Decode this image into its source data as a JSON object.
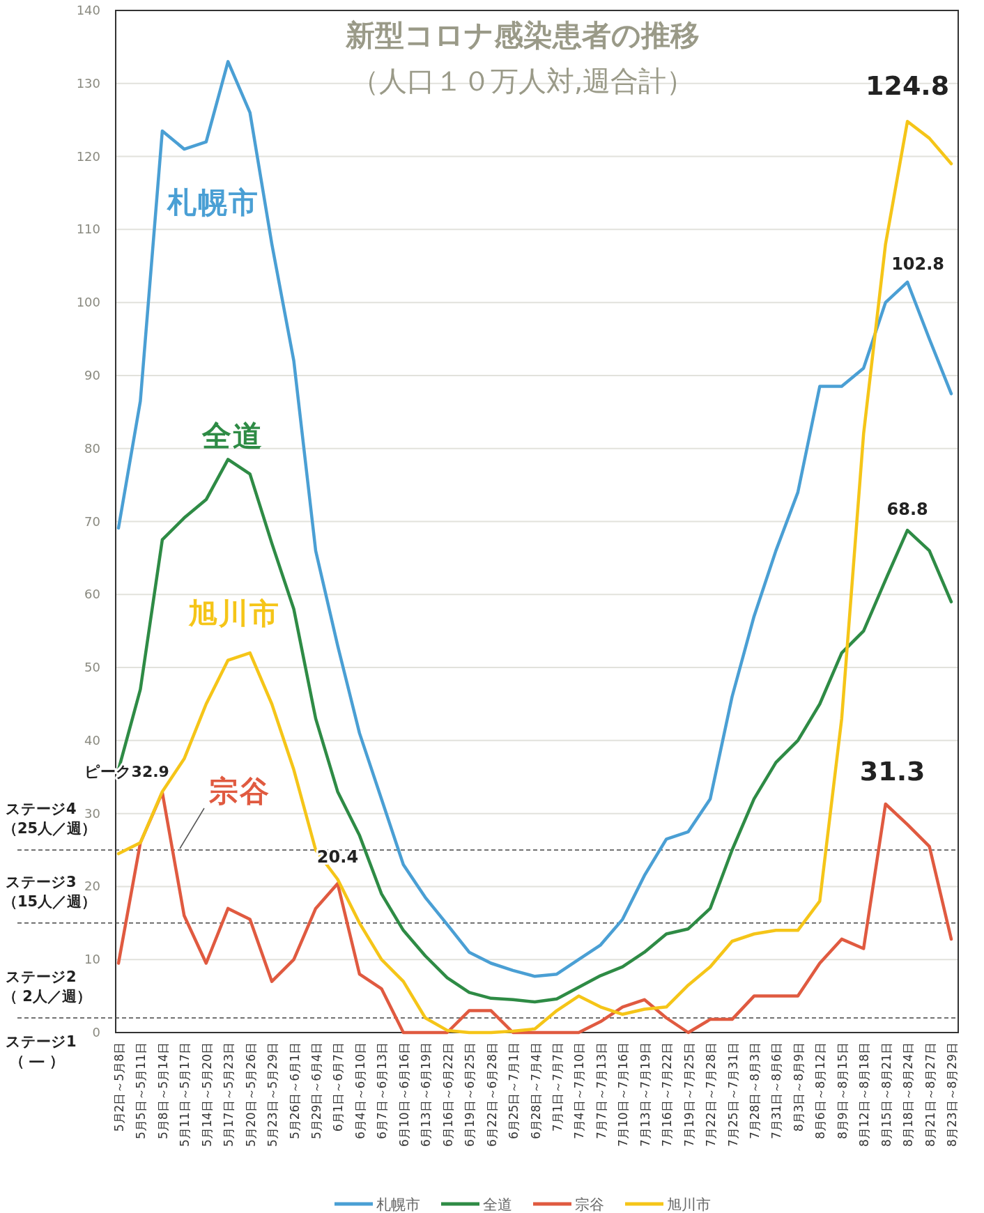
{
  "chart_data": {
    "type": "line",
    "title": "新型コロナ感染患者の推移",
    "subtitle": "（人口１０万人対,週合計）",
    "categories": [
      "5月2日～5月8日",
      "5月5日～5月11日",
      "5月8日～5月14日",
      "5月11日～5月17日",
      "5月14日～5月20日",
      "5月17日～5月23日",
      "5月20日～5月26日",
      "5月23日～5月29日",
      "5月26日～6月1日",
      "5月29日～6月4日",
      "6月1日～6月7日",
      "6月4日～6月10日",
      "6月7日～6月13日",
      "6月10日～6月16日",
      "6月13日～6月19日",
      "6月16日～6月22日",
      "6月19日～6月25日",
      "6月22日～6月28日",
      "6月25日～7月1日",
      "6月28日～7月4日",
      "7月1日～7月7日",
      "7月4日～7月10日",
      "7月7日～7月13日",
      "7月10日～7月16日",
      "7月13日～7月19日",
      "7月16日～7月22日",
      "7月19日～7月25日",
      "7月22日～7月28日",
      "7月25日～7月31日",
      "7月28日～8月3日",
      "7月31日～8月6日",
      "8月3日～8月9日",
      "8月6日～8月12日",
      "8月9日～8月15日",
      "8月12日～8月18日",
      "8月15日～8月21日",
      "8月18日～8月24日",
      "8月21日～8月27日",
      "8月23日～8月29日"
    ],
    "series": [
      {
        "name": "札幌市",
        "color": "#4a9fd4",
        "values": [
          69.1,
          86.5,
          123.5,
          121,
          122,
          133,
          126,
          108,
          92,
          66,
          53,
          41,
          32,
          23,
          18.5,
          14.8,
          11,
          9.5,
          8.5,
          7.7,
          8,
          10,
          12,
          15.5,
          21.5,
          26.5,
          27.5,
          32,
          46,
          57,
          66,
          74,
          88.5,
          88.5,
          91,
          100,
          102.8,
          95,
          87.5
        ]
      },
      {
        "name": "全道",
        "color": "#2e8b45",
        "values": [
          36,
          47,
          67.5,
          70.5,
          73,
          78.5,
          76.5,
          67,
          58,
          43,
          33,
          27,
          19,
          14,
          10.5,
          7.5,
          5.5,
          4.7,
          4.5,
          4.2,
          4.6,
          6.2,
          7.8,
          9,
          11,
          13.5,
          14.2,
          17,
          25,
          32,
          37,
          40,
          45,
          52,
          55,
          62,
          68.8,
          66,
          59
        ]
      },
      {
        "name": "宗谷",
        "color": "#e05a40",
        "values": [
          9.5,
          26,
          32.9,
          16,
          9.5,
          17,
          15.5,
          7,
          10,
          17,
          20.4,
          8,
          6,
          0,
          0,
          0,
          3,
          3,
          0,
          0,
          0,
          0,
          1.5,
          3.5,
          4.5,
          2,
          0,
          1.8,
          1.8,
          5,
          5,
          5,
          9.5,
          12.8,
          11.5,
          31.3,
          28.5,
          25.5,
          12.8
        ]
      },
      {
        "name": "旭川市",
        "color": "#f5c518",
        "values": [
          24.5,
          26,
          33,
          37.5,
          45,
          51,
          52,
          45,
          36,
          25,
          21,
          15,
          10,
          7,
          2,
          0.3,
          0,
          0,
          0.2,
          0.5,
          3,
          5,
          3.5,
          2.5,
          3.2,
          3.5,
          6.5,
          9,
          12.5,
          13.5,
          14,
          14,
          18,
          43,
          82,
          108,
          124.8,
          122.5,
          119
        ]
      }
    ],
    "ylim": [
      0,
      140
    ],
    "yticks": [
      0,
      10,
      20,
      30,
      40,
      50,
      60,
      70,
      80,
      90,
      100,
      110,
      120,
      130,
      140
    ],
    "grid": "y",
    "legend": "bottom",
    "line_style": "solid",
    "ref_lines": [
      {
        "axis": "y",
        "value": 25,
        "label": "ステージ4（25人／週）",
        "line_style": "dashed"
      },
      {
        "axis": "y",
        "value": 15,
        "label": "ステージ3（15人／週）",
        "line_style": "dashed"
      },
      {
        "axis": "y",
        "value": 2,
        "label": "ステージ2（ 2人／週）",
        "line_style": "dashed"
      }
    ],
    "annotations": [
      {
        "text": "ピーク32.9",
        "x": "5月8日～5月14日",
        "y": 32.9
      },
      {
        "text": "20.4",
        "x": "6月1日～6月7日",
        "y": 20.4
      },
      {
        "text": "124.8",
        "x": "8月18日～8月24日",
        "y": 124.8
      },
      {
        "text": "102.8",
        "x": "8月18日～8月24日",
        "y": 102.8
      },
      {
        "text": "68.8",
        "x": "8月18日～8月24日",
        "y": 68.8
      },
      {
        "text": "31.3",
        "x": "8月15日～8月21日",
        "y": 31.3
      },
      "ステージ1（ ― ）"
    ]
  }
}
